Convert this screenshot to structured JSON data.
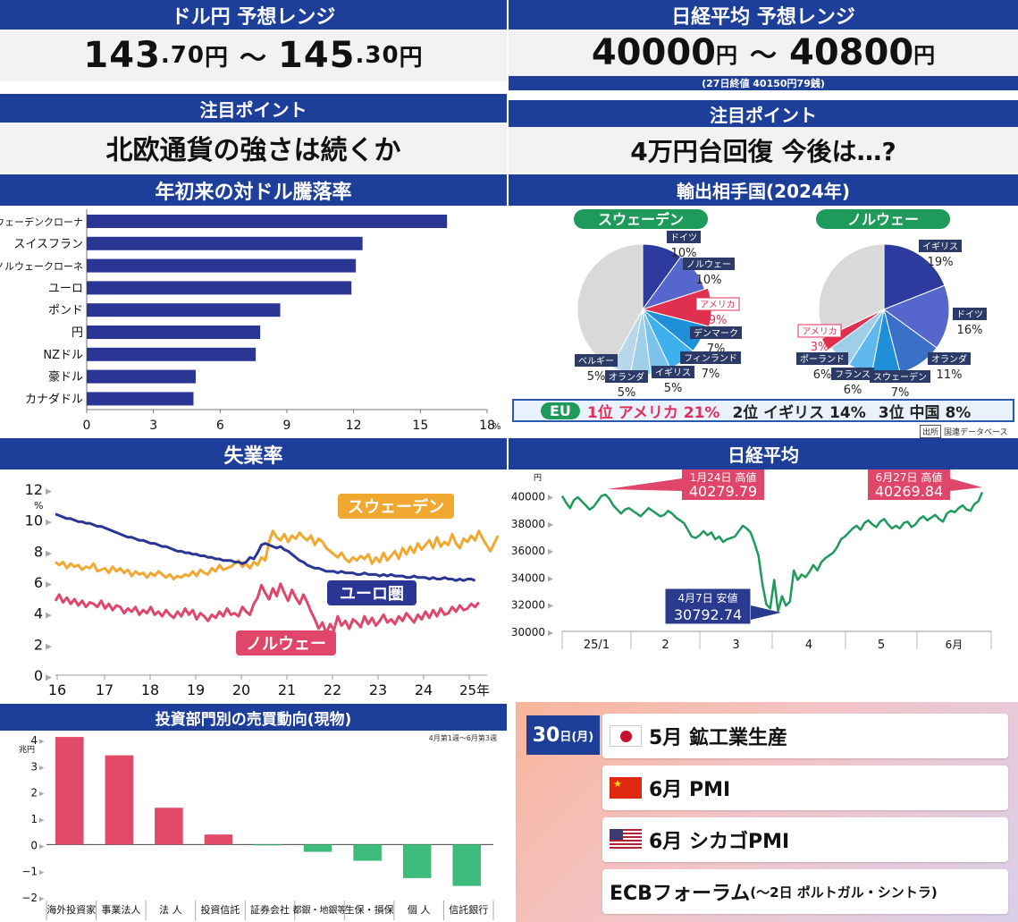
{
  "usdjpy": {
    "title": "ドル円 予想レンジ",
    "low_int": "143",
    "low_dec": ".70",
    "high_int": "145",
    "high_dec": ".30",
    "unit": "円",
    "sep": "〜"
  },
  "nikkei_range": {
    "title": "日経平均 予想レンジ",
    "low": "40000",
    "high": "40800",
    "unit": "円",
    "sep": "〜",
    "note": "(27日終値 40150円79銭)"
  },
  "point_left": {
    "title": "注目ポイント",
    "text": "北欧通貨の強さは続くか"
  },
  "point_right": {
    "title": "注目ポイント",
    "text": "4万円台回復 今後は…?"
  },
  "chart_data": [
    {
      "type": "bar",
      "orientation": "horizontal",
      "title": "年初来の対ドル騰落率",
      "categories": [
        "スウェーデンクローナ",
        "スイスフラン",
        "ノルウェークローネ",
        "ユーロ",
        "ポンド",
        "円",
        "NZドル",
        "豪ドル",
        "カナダドル"
      ],
      "values": [
        16.2,
        12.4,
        12.1,
        11.9,
        8.7,
        7.8,
        7.6,
        4.9,
        4.8
      ],
      "xlim": [
        0,
        18
      ],
      "xticks": [
        "0",
        "3",
        "6",
        "9",
        "12",
        "15",
        "18"
      ],
      "xunit": "%",
      "color": "#2a3594"
    },
    {
      "type": "pie",
      "title": "輸出相手国(2024年)",
      "subtitle": "スウェーデン",
      "slices": [
        {
          "label": "ドイツ",
          "value": 10
        },
        {
          "label": "ノルウェー",
          "value": 10
        },
        {
          "label": "アメリカ",
          "value": 9
        },
        {
          "label": "デンマーク",
          "value": 7
        },
        {
          "label": "フィンランド",
          "value": 7
        },
        {
          "label": "イギリス",
          "value": 5
        },
        {
          "label": "オランダ",
          "value": 5
        },
        {
          "label": "ベルギー",
          "value": 5
        },
        {
          "label": "",
          "value": 42
        }
      ]
    },
    {
      "type": "pie",
      "subtitle": "ノルウェー",
      "slices": [
        {
          "label": "イギリス",
          "value": 19
        },
        {
          "label": "ドイツ",
          "value": 16
        },
        {
          "label": "オランダ",
          "value": 11
        },
        {
          "label": "スウェーデン",
          "value": 7
        },
        {
          "label": "フランス",
          "value": 6
        },
        {
          "label": "ポーランド",
          "value": 6
        },
        {
          "label": "アメリカ",
          "value": 3
        },
        {
          "label": "",
          "value": 32
        }
      ]
    },
    {
      "type": "line",
      "title": "失業率",
      "x_start": 2016,
      "x_step_months": 1,
      "xticks": [
        "16",
        "17",
        "18",
        "19",
        "20",
        "21",
        "22",
        "23",
        "24",
        "25年"
      ],
      "yticks": [
        "0",
        "2",
        "4",
        "6",
        "8",
        "10",
        "12"
      ],
      "yunit": "%",
      "ylim": [
        0,
        12
      ],
      "series": [
        {
          "name": "スウェーデン",
          "color": "#f0a830",
          "values": [
            7.3,
            7.1,
            7.3,
            6.9,
            7.2,
            7.0,
            7.1,
            6.8,
            7.0,
            6.9,
            7.2,
            6.7,
            6.8,
            6.9,
            6.6,
            7.0,
            6.7,
            6.9,
            6.6,
            6.8,
            6.4,
            6.7,
            6.5,
            6.6,
            6.3,
            6.6,
            6.4,
            6.7,
            6.5,
            6.3,
            6.5,
            6.2,
            6.4,
            6.3,
            6.5,
            6.4,
            6.7,
            6.4,
            6.8,
            6.6,
            6.5,
            6.9,
            6.7,
            7.1,
            6.8,
            6.9,
            7.0,
            7.2,
            7.4,
            7.0,
            7.2,
            6.9,
            7.3,
            7.1,
            7.6,
            7.4,
            8.6,
            9.3,
            8.9,
            8.7,
            9.1,
            8.6,
            9.0,
            8.8,
            9.2,
            8.9,
            8.7,
            9.0,
            8.4,
            8.8,
            8.6,
            8.2,
            8.0,
            7.8,
            7.6,
            7.9,
            7.5,
            7.3,
            7.6,
            7.4,
            7.7,
            7.5,
            7.8,
            7.2,
            7.6,
            7.3,
            7.9,
            7.4,
            7.7,
            8.0,
            7.5,
            8.2,
            7.8,
            8.3,
            7.9,
            8.5,
            8.1,
            8.4,
            8.7,
            8.2,
            8.9,
            8.3,
            8.6,
            8.4,
            9.1,
            8.5,
            8.2,
            8.8,
            8.6,
            9.0,
            8.7,
            9.3,
            8.8,
            8.4,
            8.0,
            8.5,
            9.0
          ]
        },
        {
          "name": "ユーロ圏",
          "color": "#2a3594",
          "values": [
            10.4,
            10.3,
            10.2,
            10.1,
            10.1,
            10.0,
            9.9,
            9.9,
            9.8,
            9.8,
            9.7,
            9.6,
            9.6,
            9.5,
            9.4,
            9.3,
            9.2,
            9.1,
            9.0,
            8.9,
            8.9,
            8.8,
            8.7,
            8.7,
            8.6,
            8.5,
            8.5,
            8.4,
            8.3,
            8.3,
            8.2,
            8.1,
            8.0,
            8.0,
            7.9,
            7.9,
            7.8,
            7.8,
            7.7,
            7.7,
            7.6,
            7.6,
            7.5,
            7.5,
            7.4,
            7.4,
            7.4,
            7.3,
            7.3,
            7.2,
            7.3,
            7.6,
            7.5,
            7.9,
            8.4,
            8.5,
            8.4,
            8.3,
            8.2,
            8.3,
            8.1,
            8.0,
            7.8,
            7.6,
            7.4,
            7.3,
            7.1,
            7.0,
            6.9,
            6.9,
            6.8,
            6.7,
            6.7,
            6.7,
            6.6,
            6.7,
            6.6,
            6.6,
            6.6,
            6.5,
            6.5,
            6.6,
            6.5,
            6.5,
            6.5,
            6.4,
            6.5,
            6.4,
            6.5,
            6.4,
            6.4,
            6.4,
            6.3,
            6.3,
            6.4,
            6.3,
            6.3,
            6.3,
            6.2,
            6.3,
            6.2,
            6.2,
            6.3,
            6.2,
            6.2,
            6.1,
            6.2,
            6.1,
            6.2,
            6.2,
            6.1
          ]
        },
        {
          "name": "ノルウェー",
          "color": "#e0466a",
          "values": [
            4.8,
            5.2,
            4.7,
            5.0,
            4.6,
            4.9,
            4.5,
            4.8,
            4.4,
            4.7,
            4.6,
            4.4,
            4.8,
            4.3,
            4.6,
            4.2,
            4.5,
            4.4,
            4.0,
            4.3,
            4.1,
            4.4,
            3.9,
            4.2,
            4.0,
            4.4,
            3.9,
            4.1,
            3.8,
            4.2,
            3.9,
            3.7,
            4.1,
            3.8,
            4.3,
            3.9,
            4.2,
            3.6,
            4.0,
            3.8,
            3.5,
            3.9,
            3.7,
            4.1,
            3.8,
            4.3,
            3.9,
            4.0,
            3.8,
            4.4,
            4.1,
            3.9,
            4.6,
            5.0,
            5.8,
            5.3,
            4.9,
            5.6,
            5.1,
            5.9,
            5.3,
            4.8,
            5.5,
            5.0,
            4.6,
            5.2,
            4.7,
            4.1,
            3.6,
            3.0,
            3.4,
            2.7,
            3.3,
            2.9,
            3.8,
            3.2,
            3.5,
            3.0,
            3.6,
            3.4,
            3.1,
            3.8,
            3.3,
            3.7,
            3.2,
            3.5,
            3.9,
            3.4,
            3.6,
            3.3,
            3.8,
            3.5,
            4.0,
            3.7,
            3.4,
            3.9,
            3.6,
            4.1,
            3.7,
            4.2,
            3.8,
            4.3,
            3.9,
            4.0,
            4.4,
            4.1,
            4.5,
            4.2,
            4.3,
            4.6,
            4.4,
            4.7
          ]
        }
      ]
    },
    {
      "type": "line",
      "title": "日経平均",
      "yunit": "円",
      "yticks": [
        "30000",
        "32000",
        "34000",
        "36000",
        "38000",
        "40000"
      ],
      "ylim": [
        30000,
        40500
      ],
      "xticks": [
        "25/1",
        "2",
        "3",
        "4",
        "5",
        "6月"
      ],
      "series": [
        {
          "name": "",
          "color": "#1e9a5a",
          "values": [
            40000,
            39500,
            39100,
            39700,
            39900,
            39600,
            39300,
            39000,
            39200,
            39600,
            40000,
            40100,
            39800,
            39300,
            39000,
            38700,
            39000,
            39100,
            38900,
            38700,
            38500,
            38800,
            39100,
            38900,
            38700,
            38500,
            38600,
            38900,
            38700,
            38400,
            38200,
            38000,
            37500,
            37000,
            36900,
            37100,
            37400,
            37100,
            37300,
            36800,
            37000,
            36600,
            36800,
            36900,
            37000,
            37400,
            37800,
            37600,
            37300,
            36500,
            35600,
            33500,
            32000,
            31700,
            33800,
            31500,
            32600,
            31900,
            32200,
            34500,
            33800,
            34200,
            34000,
            34400,
            34900,
            34500,
            35100,
            35400,
            35600,
            35800,
            36200,
            36800,
            37000,
            37300,
            37600,
            37800,
            37500,
            38000,
            38200,
            37900,
            37700,
            38100,
            38300,
            37900,
            37600,
            37800,
            37600,
            38000,
            38100,
            37700,
            37900,
            38300,
            38500,
            38200,
            38400,
            38600,
            38300,
            38100,
            38700,
            38900,
            38800,
            39100,
            39300,
            39000,
            38900,
            39400,
            39600,
            40270
          ]
        }
      ],
      "annotations": [
        {
          "label": "1月24日 高値",
          "value": "40279.79"
        },
        {
          "label": "6月27日 高値",
          "value": "40269.84"
        },
        {
          "label": "4月7日 安値",
          "value": "30792.74"
        }
      ]
    },
    {
      "type": "bar",
      "title": "投資部門別の売買動向(現物)",
      "note": "4月第1週〜6月第3週",
      "yunit": "兆円",
      "ylim": [
        -2,
        4
      ],
      "yticks": [
        "−2",
        "−1",
        "0",
        "1",
        "2",
        "3",
        "4"
      ],
      "categories": [
        "海外投資家",
        "事業法人",
        "法 人",
        "投資信託",
        "証券会社",
        "都銀・地銀等",
        "生保・損保",
        "個 人",
        "信託銀行"
      ],
      "values": [
        4.1,
        3.4,
        1.4,
        0.38,
        -0.03,
        -0.28,
        -0.62,
        -1.28,
        -1.58
      ],
      "colors": {
        "positive": "#e24a6a",
        "negative": "#3dbb7a"
      }
    }
  ],
  "eu_line": {
    "eu": "EU",
    "first": "1位 アメリカ 21%",
    "second": "2位 イギリス 14%",
    "third": "3位 中国 8%",
    "source_tag": "出所",
    "source": "国連データベース"
  },
  "calendar": {
    "date_num": "30",
    "date_suffix": "日(月)",
    "items": [
      {
        "flag": "japan-flag",
        "text": "5月 鉱工業生産"
      },
      {
        "flag": "china-flag",
        "text": "6月 PMI"
      },
      {
        "flag": "us-flag",
        "text": "6月 シカゴPMI"
      },
      {
        "flag": "",
        "text": "ECBフォーラム",
        "sub": "(〜2日 ポルトガル・シントラ)"
      }
    ]
  },
  "colors": {
    "navy": "#1d3f9a",
    "bar_blue": "#2a3594",
    "green": "#1e9a5a",
    "pink": "#e0466a",
    "orange": "#f0a830"
  }
}
